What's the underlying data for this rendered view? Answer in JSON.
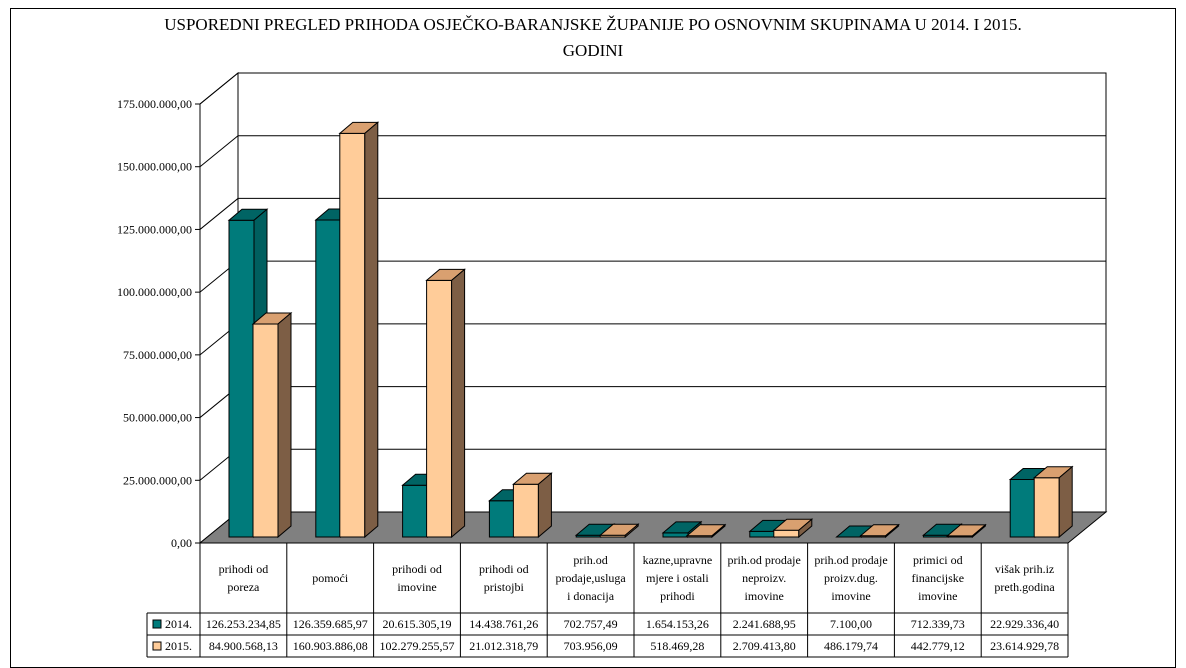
{
  "chart_data": {
    "type": "bar",
    "title_line1": "USPOREDNI PREGLED PRIHODA OSJEČKO-BARANJSKE ŽUPANIJE PO OSNOVNIM SKUPINAMA U 2014. I 2015.",
    "title_line2": "GODINI",
    "ylim": [
      0,
      175000000
    ],
    "yticks": [
      "0,00",
      "25.000.000,00",
      "50.000.000,00",
      "75.000.000,00",
      "100.000.000,00",
      "125.000.000,00",
      "150.000.000,00",
      "175.000.000,00"
    ],
    "categories": [
      [
        "prihodi od",
        "poreza"
      ],
      [
        "pomoći"
      ],
      [
        "prihodi od",
        "imovine"
      ],
      [
        "prihodi od",
        "pristojbi"
      ],
      [
        "prih.od",
        "prodaje,usluga",
        "i donacija"
      ],
      [
        "kazne,upravne",
        "mjere i ostali",
        "prihodi"
      ],
      [
        "prih.od prodaje",
        "neproizv.",
        "imovine"
      ],
      [
        "prih.od prodaje",
        "proizv.dug.",
        "imovine"
      ],
      [
        "primici od",
        "financijske",
        "imovine"
      ],
      [
        "višak prih.iz",
        "preth.godina"
      ]
    ],
    "series": [
      {
        "name": "2014.",
        "color": "#007b7b",
        "values": [
          126253234.85,
          126359685.97,
          20615305.19,
          14438761.26,
          702757.49,
          1654153.26,
          2241688.95,
          7100.0,
          712339.73,
          22929336.4
        ],
        "labels": [
          "126.253.234,85",
          "126.359.685,97",
          "20.615.305,19",
          "14.438.761,26",
          "702.757,49",
          "1.654.153,26",
          "2.241.688,95",
          "7.100,00",
          "712.339,73",
          "22.929.336,40"
        ]
      },
      {
        "name": "2015.",
        "color": "#ffcc99",
        "values": [
          84900568.13,
          160903886.08,
          102279255.57,
          21012318.79,
          703956.09,
          518469.28,
          2709413.8,
          486179.74,
          442779.12,
          23614929.78
        ],
        "labels": [
          "84.900.568,13",
          "160.903.886,08",
          "102.279.255,57",
          "21.012.318,79",
          "703.956,09",
          "518.469,28",
          "2.709.413,80",
          "486.179,74",
          "442.779,12",
          "23.614.929,78"
        ]
      }
    ],
    "grid": true,
    "legend": "data table below chart"
  }
}
